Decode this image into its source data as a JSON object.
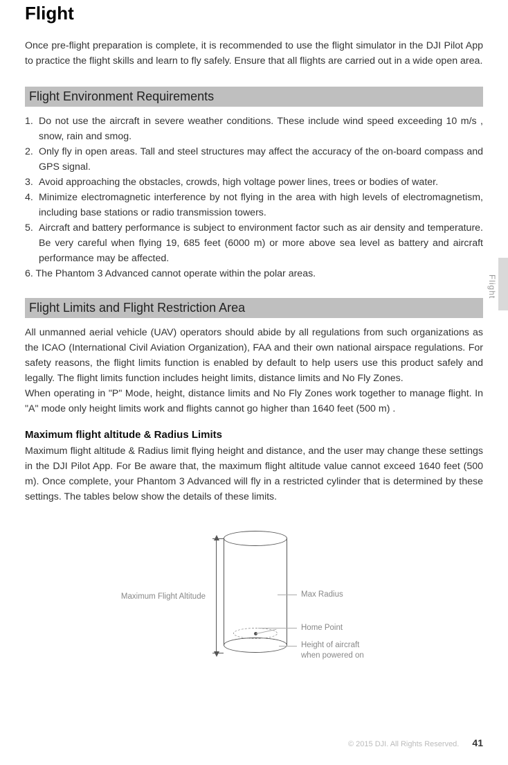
{
  "side_tab_label": "Flight",
  "page_title": "Flight",
  "intro": "Once pre-flight preparation is complete, it is recommended to use the flight simulator in the DJI Pilot App to practice the flight skills and learn to fly safely. Ensure that all flights are carried out in a wide open area.",
  "section1_header": "Flight Environment Requirements",
  "env_list": [
    {
      "n": "1.",
      "t": "Do not use the aircraft in severe weather conditions. These include wind speed exceeding 10 m/s , snow, rain and smog."
    },
    {
      "n": "2.",
      "t": "Only fly in open areas. Tall and steel structures may affect the accuracy of the on-board compass and GPS signal."
    },
    {
      "n": "3.",
      "t": " Avoid approaching the obstacles, crowds, high voltage power lines, trees or bodies of water."
    },
    {
      "n": "4.",
      "t": " Minimize electromagnetic interference by not flying in the area with high levels of electromagnetism, including base stations or radio transmission towers."
    },
    {
      "n": "5.",
      "t": "Aircraft and battery performance is subject to environment factor such as air density and temperature. Be very careful when flying 19, 685 feet (6000 m) or more above sea level as battery and aircraft performance may be affected."
    },
    {
      "n": "6. ",
      "t": "The Phantom 3 Advanced cannot operate within the polar areas.",
      "noindent": true
    }
  ],
  "section2_header": "Flight Limits and Flight Restriction Area",
  "limits_para": "All unmanned aerial vehicle (UAV) operators should abide by all regulations from such organizations as the ICAO (International Civil Aviation Organization), FAA and their own national airspace regulations. For safety reasons, the flight limits function is enabled by default to help users use this product safely and legally. The flight limits function includes height limits, distance limits and No Fly Zones.\nWhen operating in \"P\" Mode, height, distance limits and No Fly Zones work together to manage flight. In \"A\" mode only height limits work and flights cannot go higher than 1640 feet  (500 m) .",
  "sub_heading": "Maximum flight altitude & Radius Limits",
  "sub_para": "Maximum flight altitude & Radius limit flying height and distance, and the user may change these settings in the DJI Pilot App. For Be aware that, the maximum flight altitude value cannot  exceed 1640 feet (500 m). Once complete, your Phantom 3 Advanced will fly in a restricted cylinder that is determined by these settings. The tables below show the details of these limits.",
  "diagram": {
    "max_alt_label": "Maximum Flight Altitude",
    "max_radius_label": "Max Radius",
    "home_point_label": "Home Point",
    "height_label": "Height of aircraft\nwhen powered on"
  },
  "footer_copy": "© 2015 DJI. All Rights Reserved.",
  "page_number": "41"
}
